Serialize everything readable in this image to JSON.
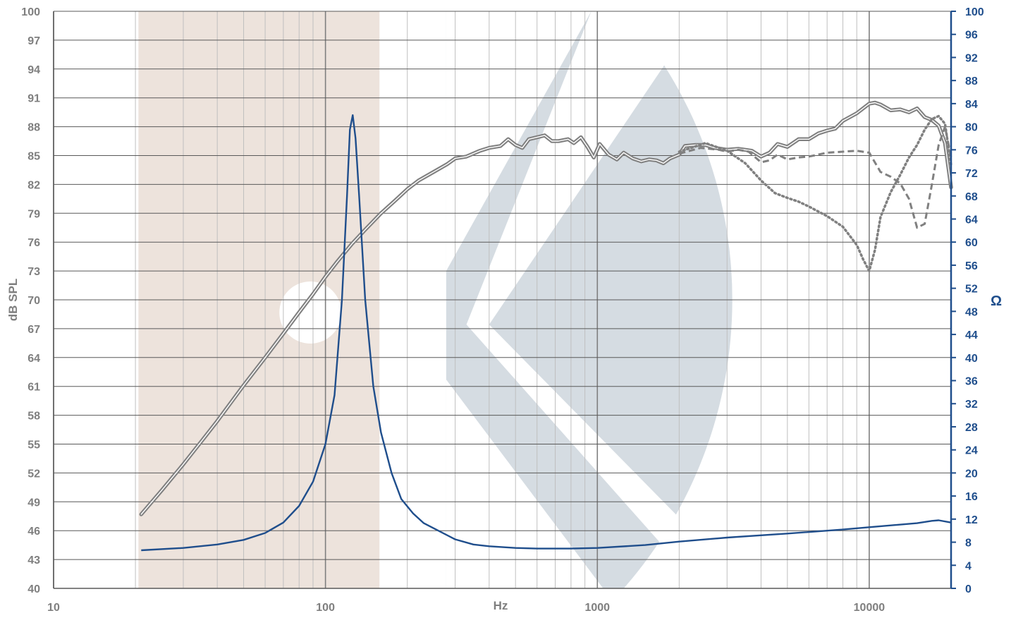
{
  "chart_data": {
    "type": "line",
    "xscale": "log",
    "xlim": [
      10,
      20000
    ],
    "x_ticks": [
      "10",
      "100",
      "1000",
      "10000"
    ],
    "xlabel": "Hz",
    "ylabel_left": "dB SPL",
    "ylim_left": [
      40,
      100
    ],
    "y_ticks_left": [
      "40",
      "43",
      "46",
      "49",
      "52",
      "55",
      "58",
      "61",
      "64",
      "67",
      "70",
      "73",
      "76",
      "79",
      "82",
      "85",
      "88",
      "91",
      "94",
      "97",
      "100"
    ],
    "ylabel_right": "Ω",
    "ylim_right": [
      0,
      100
    ],
    "y_ticks_right": [
      "0",
      "4",
      "8",
      "12",
      "16",
      "20",
      "24",
      "28",
      "32",
      "36",
      "40",
      "44",
      "48",
      "52",
      "56",
      "60",
      "64",
      "68",
      "72",
      "76",
      "80",
      "84",
      "88",
      "92",
      "96",
      "100"
    ],
    "grid": true,
    "colors": {
      "spl": "#808080",
      "impedance": "#1f4e8c",
      "grid": "#bfbfbf",
      "watermark_beige": "#ede3dc",
      "watermark_blue": "#d5dce2"
    },
    "series": [
      {
        "axis": "left",
        "style": "double",
        "points": [
          [
            21,
            47.7
          ],
          [
            25,
            50.2
          ],
          [
            30,
            52.9
          ],
          [
            35,
            55.3
          ],
          [
            40,
            57.4
          ],
          [
            50,
            61.1
          ],
          [
            60,
            64.0
          ],
          [
            70,
            66.5
          ],
          [
            80,
            68.7
          ],
          [
            90,
            70.6
          ],
          [
            100,
            72.4
          ],
          [
            110,
            73.9
          ],
          [
            125,
            75.8
          ],
          [
            140,
            77.3
          ],
          [
            160,
            79.0
          ],
          [
            180,
            80.3
          ],
          [
            200,
            81.5
          ],
          [
            220,
            82.4
          ],
          [
            250,
            83.3
          ],
          [
            280,
            84.1
          ],
          [
            300,
            84.7
          ],
          [
            330,
            84.9
          ],
          [
            370,
            85.5
          ],
          [
            400,
            85.8
          ],
          [
            440,
            86.0
          ],
          [
            470,
            86.7
          ],
          [
            500,
            86.1
          ],
          [
            530,
            85.8
          ],
          [
            560,
            86.7
          ],
          [
            600,
            86.9
          ],
          [
            640,
            87.1
          ],
          [
            680,
            86.5
          ],
          [
            720,
            86.5
          ],
          [
            780,
            86.7
          ],
          [
            820,
            86.3
          ],
          [
            870,
            86.9
          ],
          [
            920,
            85.9
          ],
          [
            970,
            84.8
          ],
          [
            1020,
            86.2
          ],
          [
            1100,
            85.1
          ],
          [
            1180,
            84.6
          ],
          [
            1250,
            85.3
          ],
          [
            1350,
            84.7
          ],
          [
            1450,
            84.4
          ],
          [
            1550,
            84.6
          ],
          [
            1650,
            84.5
          ],
          [
            1750,
            84.2
          ],
          [
            1850,
            84.7
          ],
          [
            2000,
            85.1
          ],
          [
            2100,
            86.0
          ],
          [
            2300,
            86.1
          ],
          [
            2500,
            86.1
          ],
          [
            2700,
            85.8
          ],
          [
            3000,
            85.6
          ],
          [
            3300,
            85.7
          ],
          [
            3700,
            85.5
          ],
          [
            4000,
            84.9
          ],
          [
            4300,
            85.3
          ],
          [
            4600,
            86.2
          ],
          [
            5000,
            85.9
          ],
          [
            5500,
            86.7
          ],
          [
            6000,
            86.7
          ],
          [
            6500,
            87.3
          ],
          [
            7000,
            87.6
          ],
          [
            7500,
            87.8
          ],
          [
            8000,
            88.6
          ],
          [
            9000,
            89.4
          ],
          [
            10000,
            90.4
          ],
          [
            10500,
            90.5
          ],
          [
            11000,
            90.3
          ],
          [
            12000,
            89.7
          ],
          [
            13000,
            89.8
          ],
          [
            14000,
            89.5
          ],
          [
            15000,
            89.9
          ],
          [
            16000,
            89.0
          ],
          [
            17000,
            88.7
          ],
          [
            18000,
            88.1
          ],
          [
            19000,
            86.3
          ],
          [
            20000,
            81.7
          ]
        ]
      },
      {
        "axis": "left",
        "style": "dashed",
        "points": [
          [
            2000,
            85.2
          ],
          [
            2400,
            85.8
          ],
          [
            2800,
            85.6
          ],
          [
            3000,
            85.4
          ],
          [
            3300,
            85.6
          ],
          [
            3600,
            85.4
          ],
          [
            4000,
            84.3
          ],
          [
            4300,
            84.5
          ],
          [
            4600,
            85.1
          ],
          [
            5000,
            84.6
          ],
          [
            5500,
            84.8
          ],
          [
            6000,
            84.9
          ],
          [
            7000,
            85.3
          ],
          [
            8000,
            85.4
          ],
          [
            9000,
            85.5
          ],
          [
            10000,
            85.3
          ],
          [
            11000,
            83.3
          ],
          [
            12000,
            82.8
          ],
          [
            13000,
            82.1
          ],
          [
            14000,
            80.5
          ],
          [
            15000,
            77.5
          ],
          [
            16000,
            77.9
          ],
          [
            17000,
            82.0
          ],
          [
            18000,
            86.1
          ],
          [
            19000,
            88.0
          ],
          [
            20000,
            84.8
          ]
        ]
      },
      {
        "axis": "left",
        "style": "dotted",
        "points": [
          [
            2000,
            85.4
          ],
          [
            2500,
            86.3
          ],
          [
            3000,
            85.5
          ],
          [
            3500,
            84.2
          ],
          [
            4000,
            82.4
          ],
          [
            4500,
            81.1
          ],
          [
            5000,
            80.6
          ],
          [
            5500,
            80.2
          ],
          [
            6000,
            79.7
          ],
          [
            7000,
            78.7
          ],
          [
            8000,
            77.6
          ],
          [
            9000,
            75.7
          ],
          [
            9500,
            74.2
          ],
          [
            10000,
            73.0
          ],
          [
            10500,
            75.2
          ],
          [
            11000,
            78.6
          ],
          [
            12000,
            81.2
          ],
          [
            13000,
            83.0
          ],
          [
            14000,
            84.8
          ],
          [
            15000,
            86.1
          ],
          [
            16000,
            87.7
          ],
          [
            17000,
            88.8
          ],
          [
            18000,
            89.1
          ],
          [
            19000,
            88.3
          ],
          [
            20000,
            84.0
          ]
        ]
      },
      {
        "axis": "right",
        "style": "solid",
        "points": [
          [
            21,
            6.6
          ],
          [
            30,
            7.0
          ],
          [
            40,
            7.6
          ],
          [
            50,
            8.4
          ],
          [
            60,
            9.6
          ],
          [
            70,
            11.4
          ],
          [
            80,
            14.3
          ],
          [
            90,
            18.5
          ],
          [
            100,
            25.0
          ],
          [
            108,
            33.5
          ],
          [
            115,
            50.0
          ],
          [
            120,
            68.0
          ],
          [
            123,
            79.5
          ],
          [
            126,
            82.0
          ],
          [
            129,
            78.0
          ],
          [
            133,
            68.0
          ],
          [
            140,
            50.0
          ],
          [
            150,
            35.0
          ],
          [
            160,
            27.0
          ],
          [
            175,
            20.0
          ],
          [
            190,
            15.5
          ],
          [
            210,
            13.0
          ],
          [
            230,
            11.3
          ],
          [
            260,
            10.0
          ],
          [
            300,
            8.5
          ],
          [
            350,
            7.6
          ],
          [
            400,
            7.3
          ],
          [
            500,
            7.0
          ],
          [
            600,
            6.9
          ],
          [
            800,
            6.9
          ],
          [
            1000,
            7.0
          ],
          [
            1500,
            7.5
          ],
          [
            2000,
            8.1
          ],
          [
            3000,
            8.8
          ],
          [
            5000,
            9.5
          ],
          [
            8000,
            10.2
          ],
          [
            10000,
            10.6
          ],
          [
            15000,
            11.3
          ],
          [
            17000,
            11.7
          ],
          [
            18000,
            11.8
          ],
          [
            20000,
            11.4
          ]
        ]
      }
    ]
  }
}
